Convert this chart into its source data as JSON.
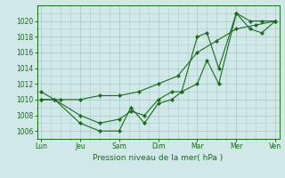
{
  "background_color": "#d0e8e8",
  "grid_color": "#aacccc",
  "line_color": "#1a6b1a",
  "marker_color": "#1a6b1a",
  "xlabel": "Pression niveau de la mer( hPa )",
  "ylim": [
    1005.0,
    1022.0
  ],
  "yticks": [
    1006,
    1008,
    1010,
    1012,
    1014,
    1016,
    1018,
    1020
  ],
  "xlabels": [
    "Lun",
    "Jeu",
    "Sam",
    "Dim",
    "Mar",
    "Mer",
    "Ven"
  ],
  "xtick_positions": [
    0,
    1,
    2,
    3,
    4,
    5,
    6
  ],
  "line1_x": [
    0,
    0.35,
    1.0,
    1.5,
    2.0,
    2.3,
    2.65,
    3.0,
    3.35,
    3.6,
    4.0,
    4.25,
    4.55,
    5.0,
    5.35,
    5.65,
    6.0
  ],
  "line1_y": [
    1011,
    1010,
    1007,
    1006,
    1006,
    1009,
    1007,
    1009.5,
    1010,
    1011,
    1012,
    1015,
    1012,
    1021,
    1020,
    1020,
    1020
  ],
  "line2_x": [
    0,
    0.35,
    1.0,
    1.5,
    2.0,
    2.3,
    2.65,
    3.0,
    3.35,
    3.6,
    4.0,
    4.25,
    4.55,
    5.0,
    5.35,
    5.65,
    6.0
  ],
  "line2_y": [
    1010,
    1010,
    1008,
    1007,
    1007.5,
    1008.5,
    1008,
    1010,
    1011,
    1011,
    1018,
    1018.5,
    1014,
    1021,
    1019,
    1018.5,
    1020
  ],
  "line3_x": [
    0,
    0.5,
    1.0,
    1.5,
    2.0,
    2.5,
    3.0,
    3.5,
    4.0,
    4.5,
    5.0,
    5.5,
    6.0
  ],
  "line3_y": [
    1010,
    1010,
    1010,
    1010.5,
    1010.5,
    1011,
    1012,
    1013,
    1016,
    1017.5,
    1019,
    1019.5,
    1020
  ]
}
